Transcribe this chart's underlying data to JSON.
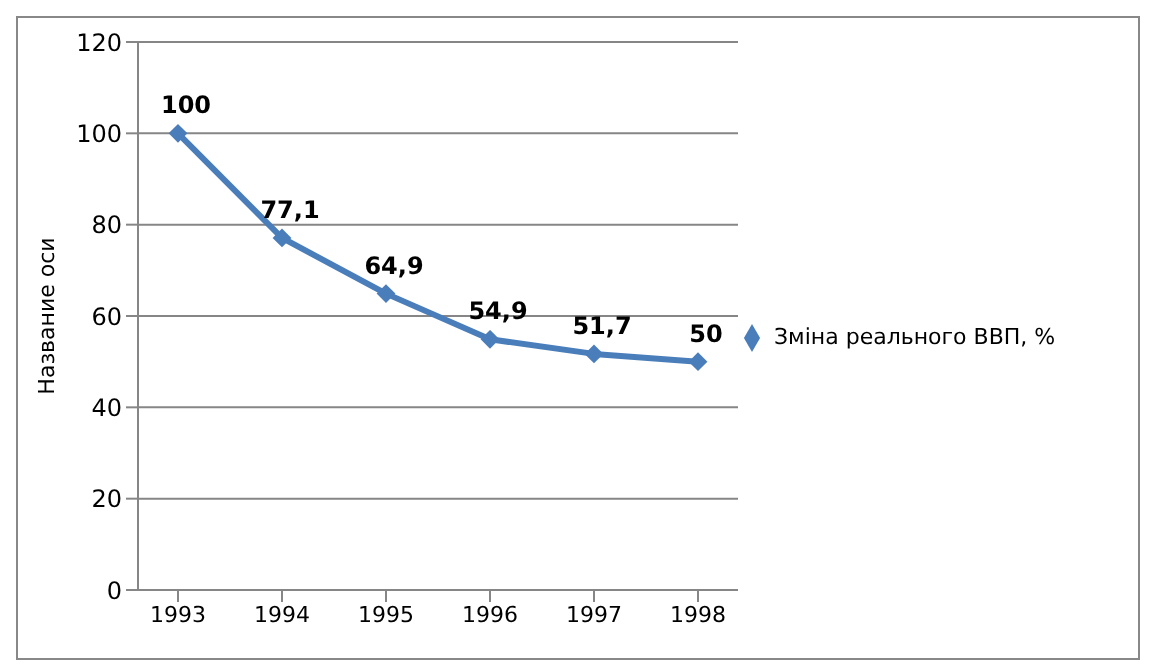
{
  "chart_data": {
    "type": "line",
    "ylabel": "Название оси",
    "categories": [
      "1993",
      "1994",
      "1995",
      "1996",
      "1997",
      "1998"
    ],
    "series": [
      {
        "name": "Зміна реального ВВП, %",
        "color": "#4a7ebb",
        "values": [
          100,
          77.1,
          64.9,
          54.9,
          51.7,
          50
        ],
        "value_labels": [
          "100",
          "77,1",
          "64,9",
          "54,9",
          "51,7",
          "50"
        ]
      }
    ],
    "ylim": [
      0,
      120
    ],
    "yticks": [
      0,
      20,
      40,
      60,
      80,
      100,
      120
    ],
    "grid": "y",
    "legend": "right",
    "marker": "diamond"
  }
}
